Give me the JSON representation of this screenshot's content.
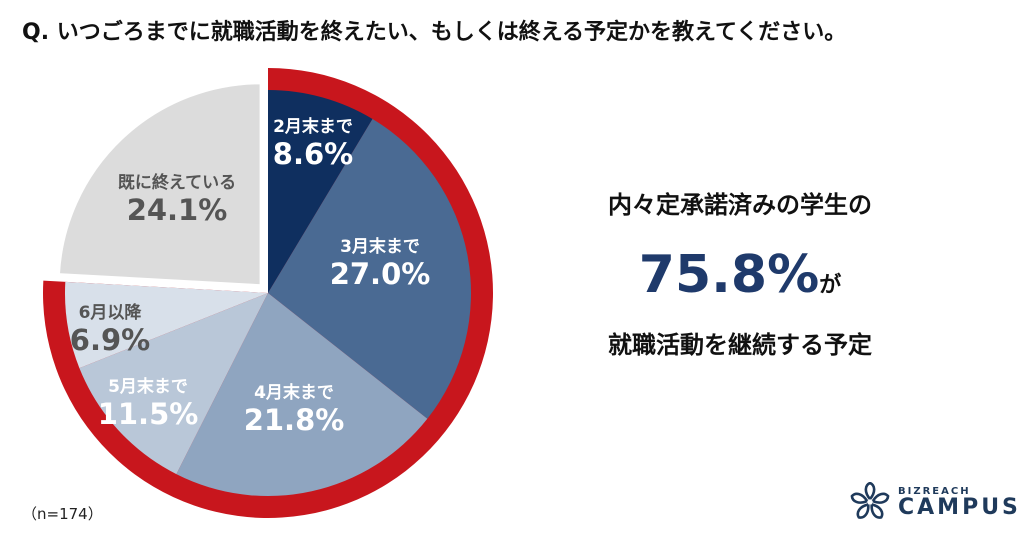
{
  "title": "Q. いつごろまでに就職活動を終えたい、もしくは終える予定かを教えてください。",
  "sample": "（n=174）",
  "highlight": {
    "line1": "内々定承諾済みの学生の",
    "value": "75.8%",
    "suffix": "が",
    "line3": "就職活動を継続する予定",
    "value_color": "#1f3a6b"
  },
  "logo": {
    "line1": "BIZREACH",
    "line2": "CAMPUS",
    "icon": "sakura-flower-icon"
  },
  "colors": {
    "ring": "#c8161d"
  },
  "chart_data": {
    "type": "pie",
    "title": "Q. いつごろまでに就職活動を終えたい、もしくは終える予定かを教えてください。",
    "start_angle": "12 o'clock",
    "direction": "clockwise",
    "n": 174,
    "categories": [
      "2月末まで",
      "3月末まで",
      "4月末まで",
      "5月末まで",
      "6月以降",
      "既に終えている"
    ],
    "values": [
      8.6,
      27.0,
      21.8,
      11.5,
      6.9,
      24.1
    ],
    "labels": [
      "8.6%",
      "27.0%",
      "21.8%",
      "11.5%",
      "6.9%",
      "24.1%"
    ],
    "colors": [
      "#0f2f5f",
      "#4a6a93",
      "#8fa5c0",
      "#b9c7d8",
      "#d8e0ea",
      "#dcdcdc"
    ],
    "exploded": [
      "既に終えている"
    ],
    "annotation": "Red outer arc highlights the first five slices (75.8% continuing job hunting)"
  }
}
